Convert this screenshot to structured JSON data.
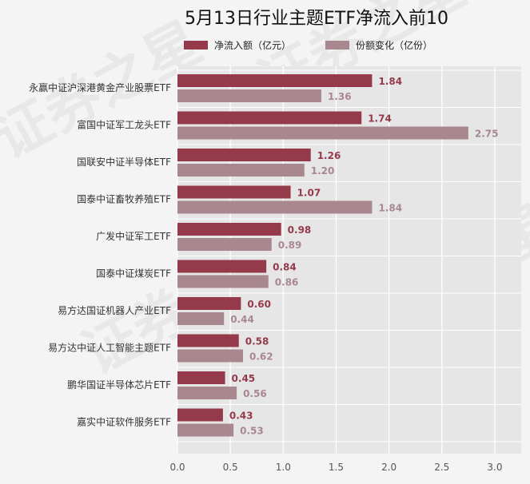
{
  "chart_data": {
    "type": "bar",
    "orientation": "horizontal",
    "title": "5月13日行业主题ETF净流入前10",
    "categories": [
      "永赢中证沪深港黄金产业股票ETF",
      "富国中证军工龙头ETF",
      "国联安中证半导体ETF",
      "国泰中证畜牧养殖ETF",
      "广发中证军工ETF",
      "国泰中证煤炭ETF",
      "易方达国证机器人产业ETF",
      "易方达中证人工智能主题ETF",
      "鹏华国证半导体芯片ETF",
      "嘉实中证软件服务ETF"
    ],
    "series": [
      {
        "name": "净流入额（亿元）",
        "color": "#943a4b",
        "values": [
          1.84,
          1.74,
          1.26,
          1.07,
          0.98,
          0.84,
          0.6,
          0.58,
          0.45,
          0.43
        ],
        "labels": [
          "1.84",
          "1.74",
          "1.26",
          "1.07",
          "0.98",
          "0.84",
          "0.60",
          "0.58",
          "0.45",
          "0.43"
        ]
      },
      {
        "name": "份额变化（亿份）",
        "color": "#a9878f",
        "values": [
          1.36,
          2.75,
          1.2,
          1.84,
          0.89,
          0.86,
          0.44,
          0.62,
          0.56,
          0.53
        ],
        "labels": [
          "1.36",
          "2.75",
          "1.20",
          "1.84",
          "0.89",
          "0.86",
          "0.44",
          "0.62",
          "0.56",
          "0.53"
        ]
      }
    ],
    "xlim": [
      0,
      3.25
    ],
    "xticks": [
      0,
      0.5,
      1,
      1.5,
      2,
      2.5,
      3
    ],
    "xtick_labels": [
      "0.0",
      "0.5",
      "1.0",
      "1.5",
      "2.0",
      "2.5",
      "3.0"
    ],
    "grid": true,
    "legend_position": "top"
  }
}
